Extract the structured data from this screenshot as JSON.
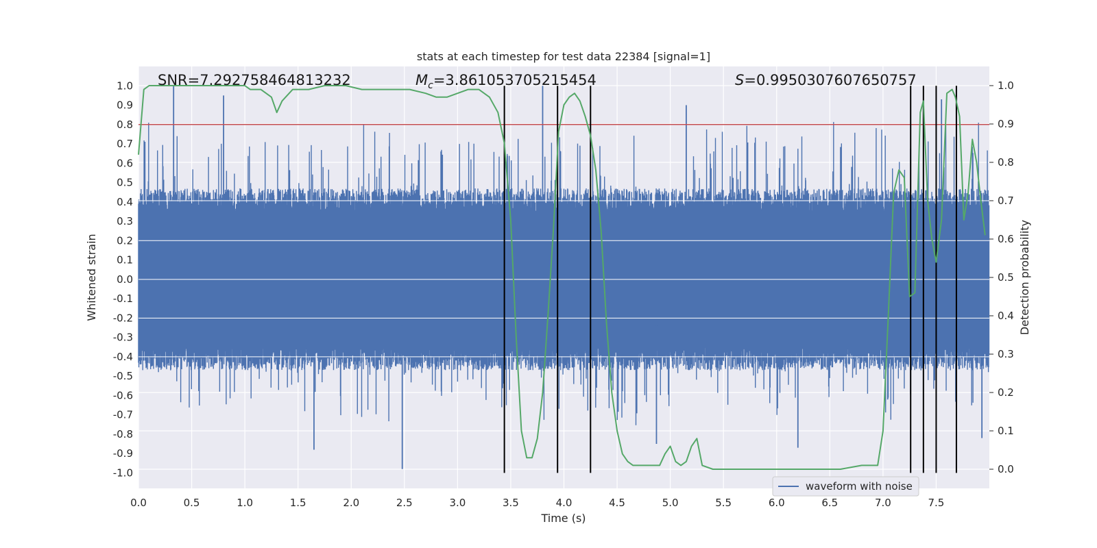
{
  "chart_data": {
    "type": "line",
    "title": "stats at each timestep for test data 22384 [signal=1]",
    "xlabel": "Time (s)",
    "ylabel": "Whitened strain",
    "ylabel_right": "Detection probability",
    "xlim": [
      0.0,
      8.0
    ],
    "ylim": [
      -1.08,
      1.1
    ],
    "ylim_right": [
      -0.05,
      1.05
    ],
    "x_ticks": [
      0.0,
      0.5,
      1.0,
      1.5,
      2.0,
      2.5,
      3.0,
      3.5,
      4.0,
      4.5,
      5.0,
      5.5,
      6.0,
      6.5,
      7.0,
      7.5
    ],
    "x_tick_labels": [
      "0.0",
      "0.5",
      "1.0",
      "1.5",
      "2.0",
      "2.5",
      "3.0",
      "3.5",
      "4.0",
      "4.5",
      "5.0",
      "5.5",
      "6.0",
      "6.5",
      "7.0",
      "7.5"
    ],
    "y_ticks": [
      1.0,
      0.9,
      0.8,
      0.7,
      0.6,
      0.5,
      0.4,
      0.3,
      0.2,
      0.1,
      0.0,
      -0.1,
      -0.2,
      -0.3,
      -0.4,
      -0.5,
      -0.6,
      -0.7,
      -0.8,
      -0.9,
      -1.0
    ],
    "y_tick_labels": [
      "1.0",
      "0.9",
      "0.8",
      "0.7",
      "0.6",
      "0.5",
      "0.4",
      "0.3",
      "0.2",
      "0.1",
      "0.0",
      "-0.1",
      "-0.2",
      "-0.3",
      "-0.4",
      "-0.5",
      "-0.6",
      "-0.7",
      "-0.8",
      "-0.9",
      "-1.0"
    ],
    "y_right_ticks": [
      1.0,
      0.9,
      0.8,
      0.7,
      0.6,
      0.5,
      0.4,
      0.3,
      0.2,
      0.1,
      0.0
    ],
    "y_right_tick_labels": [
      "1.0",
      "0.9",
      "0.8",
      "0.7",
      "0.6",
      "0.5",
      "0.4",
      "0.3",
      "0.2",
      "0.1",
      "0.0"
    ],
    "threshold": 0.8,
    "vlines": [
      3.44,
      3.94,
      4.25,
      7.26,
      7.38,
      7.5,
      7.69
    ],
    "annotations": {
      "snr": "SNR=7.292758464813232",
      "mc_symbol": "M",
      "mc_sub": "c",
      "mc_value": "=3.861053705215454",
      "s_symbol": "S",
      "s_value": "=0.9950307607650757"
    },
    "legend": {
      "label": "waveform with noise",
      "placement": "lower-right"
    },
    "series": [
      {
        "name": "waveform with noise",
        "color": "#4c72b0",
        "envelope": {
          "typical_low": -0.35,
          "typical_high": 0.35
        },
        "spikes": [
          [
            0.33,
            1.0
          ],
          [
            0.8,
            0.95
          ],
          [
            3.8,
            1.0
          ],
          [
            5.15,
            0.9
          ],
          [
            7.55,
            0.93
          ],
          [
            1.65,
            -0.88
          ],
          [
            2.48,
            -0.98
          ],
          [
            4.87,
            -0.85
          ],
          [
            6.2,
            -0.87
          ],
          [
            7.93,
            -0.82
          ]
        ]
      },
      {
        "name": "detection probability",
        "color": "#55a868",
        "x": [
          0.0,
          0.05,
          0.1,
          0.2,
          0.4,
          0.6,
          0.8,
          1.0,
          1.05,
          1.15,
          1.25,
          1.3,
          1.35,
          1.45,
          1.6,
          1.75,
          1.95,
          2.1,
          2.25,
          2.4,
          2.55,
          2.7,
          2.8,
          2.9,
          3.0,
          3.1,
          3.2,
          3.3,
          3.38,
          3.44,
          3.5,
          3.55,
          3.6,
          3.65,
          3.7,
          3.75,
          3.8,
          3.85,
          3.9,
          3.95,
          4.0,
          4.05,
          4.1,
          4.15,
          4.2,
          4.25,
          4.3,
          4.35,
          4.4,
          4.45,
          4.5,
          4.55,
          4.6,
          4.65,
          4.7,
          4.8,
          4.9,
          4.95,
          5.0,
          5.05,
          5.1,
          5.15,
          5.2,
          5.25,
          5.3,
          5.4,
          5.6,
          5.8,
          6.0,
          6.2,
          6.4,
          6.6,
          6.8,
          6.95,
          7.0,
          7.05,
          7.1,
          7.15,
          7.2,
          7.25,
          7.3,
          7.35,
          7.38,
          7.42,
          7.46,
          7.5,
          7.55,
          7.6,
          7.65,
          7.68,
          7.72,
          7.76,
          7.8,
          7.84,
          7.88,
          7.92,
          7.96
        ],
        "y": [
          0.82,
          0.99,
          1.0,
          1.0,
          1.0,
          1.0,
          1.0,
          1.0,
          0.99,
          0.99,
          0.97,
          0.93,
          0.96,
          0.99,
          0.99,
          1.0,
          1.0,
          0.99,
          0.99,
          0.99,
          0.99,
          0.98,
          0.97,
          0.97,
          0.98,
          0.99,
          0.99,
          0.97,
          0.93,
          0.85,
          0.65,
          0.35,
          0.1,
          0.03,
          0.03,
          0.08,
          0.2,
          0.4,
          0.62,
          0.88,
          0.95,
          0.97,
          0.98,
          0.96,
          0.92,
          0.87,
          0.78,
          0.62,
          0.38,
          0.2,
          0.1,
          0.04,
          0.02,
          0.01,
          0.01,
          0.01,
          0.01,
          0.04,
          0.06,
          0.02,
          0.01,
          0.02,
          0.06,
          0.08,
          0.01,
          0.0,
          0.0,
          0.0,
          0.0,
          0.0,
          0.0,
          0.0,
          0.01,
          0.01,
          0.1,
          0.4,
          0.72,
          0.78,
          0.76,
          0.45,
          0.46,
          0.93,
          0.96,
          0.7,
          0.6,
          0.54,
          0.65,
          0.98,
          0.99,
          0.97,
          0.92,
          0.65,
          0.72,
          0.86,
          0.8,
          0.7,
          0.61
        ]
      }
    ]
  }
}
